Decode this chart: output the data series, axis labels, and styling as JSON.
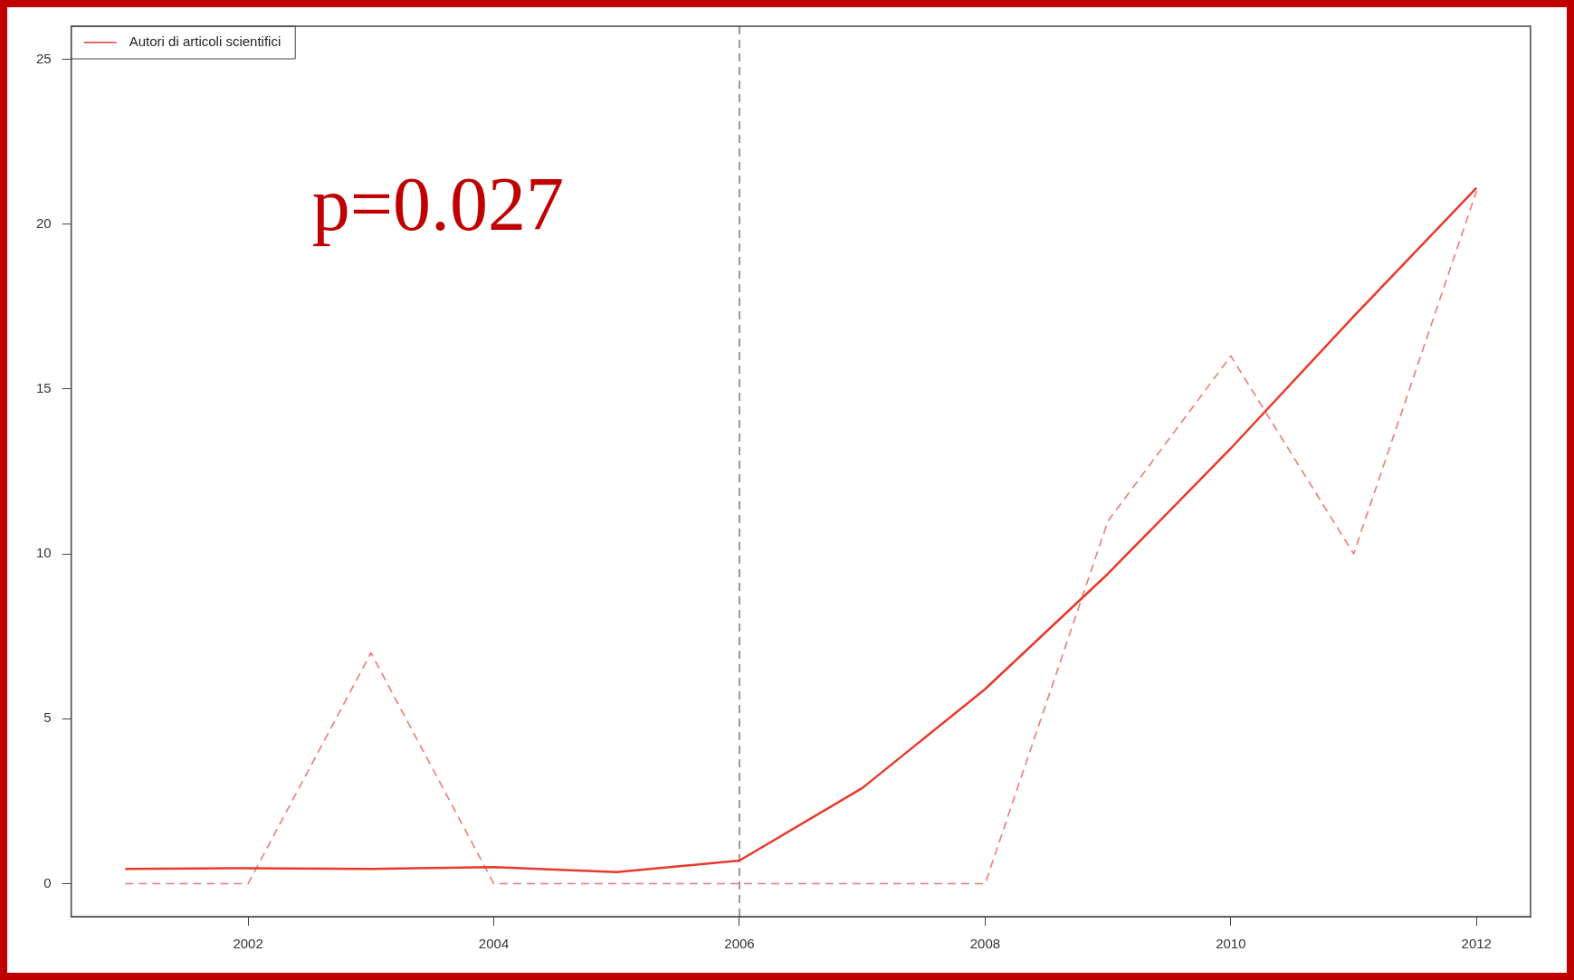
{
  "chart_data": {
    "type": "line",
    "x": [
      2001,
      2002,
      2003,
      2004,
      2005,
      2006,
      2007,
      2008,
      2009,
      2010,
      2011,
      2012
    ],
    "series": [
      {
        "name": "Autori di articoli scientifici",
        "color": "#e8392c",
        "line_style": "solid",
        "values": [
          0.45,
          0.47,
          0.45,
          0.5,
          0.35,
          0.7,
          2.9,
          5.9,
          9.4,
          13.2,
          17.2,
          21.1
        ]
      },
      {
        "color": "#f07a72",
        "line_style": "dashed",
        "values": [
          0,
          0,
          7,
          0,
          0,
          0,
          0,
          0,
          11,
          16,
          10,
          21
        ]
      }
    ],
    "xlim": [
      2000.56,
      2012.44
    ],
    "xticks": [
      2002,
      2004,
      2006,
      2008,
      2010,
      2012
    ],
    "ylim": [
      -1,
      26
    ],
    "yticks": [
      0,
      5,
      10,
      15,
      20,
      25
    ],
    "ref_lines": [
      {
        "axis": "x",
        "value": 2006,
        "color": "#999999",
        "line_style": "dashed"
      }
    ],
    "annotations": [
      "p=0.027"
    ],
    "legend": "top left",
    "grid": false,
    "marker": "none"
  }
}
